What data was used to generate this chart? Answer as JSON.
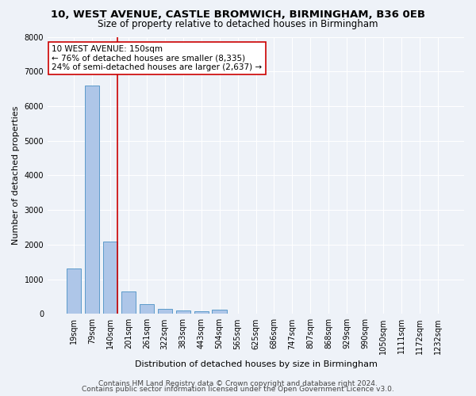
{
  "title_line1": "10, WEST AVENUE, CASTLE BROMWICH, BIRMINGHAM, B36 0EB",
  "title_line2": "Size of property relative to detached houses in Birmingham",
  "xlabel": "Distribution of detached houses by size in Birmingham",
  "ylabel": "Number of detached properties",
  "categories": [
    "19sqm",
    "79sqm",
    "140sqm",
    "201sqm",
    "261sqm",
    "322sqm",
    "383sqm",
    "443sqm",
    "504sqm",
    "565sqm",
    "625sqm",
    "686sqm",
    "747sqm",
    "807sqm",
    "868sqm",
    "929sqm",
    "990sqm",
    "1050sqm",
    "1111sqm",
    "1172sqm",
    "1232sqm"
  ],
  "values": [
    1310,
    6600,
    2080,
    650,
    290,
    140,
    95,
    80,
    110,
    0,
    0,
    0,
    0,
    0,
    0,
    0,
    0,
    0,
    0,
    0,
    0
  ],
  "bar_color": "#aec6e8",
  "bar_edge_color": "#4a90c4",
  "vline_x_index": 2,
  "vline_color": "#cc0000",
  "annotation_text": "10 WEST AVENUE: 150sqm\n← 76% of detached houses are smaller (8,335)\n24% of semi-detached houses are larger (2,637) →",
  "annotation_box_color": "#ffffff",
  "annotation_box_edge_color": "#cc0000",
  "ylim": [
    0,
    8000
  ],
  "yticks": [
    0,
    1000,
    2000,
    3000,
    4000,
    5000,
    6000,
    7000,
    8000
  ],
  "footer_line1": "Contains HM Land Registry data © Crown copyright and database right 2024.",
  "footer_line2": "Contains public sector information licensed under the Open Government Licence v3.0.",
  "bg_color": "#eef2f8",
  "plot_bg_color": "#eef2f8",
  "grid_color": "#ffffff",
  "title_fontsize": 9.5,
  "subtitle_fontsize": 8.5,
  "axis_label_fontsize": 8,
  "tick_fontsize": 7,
  "annotation_fontsize": 7.5,
  "footer_fontsize": 6.5
}
